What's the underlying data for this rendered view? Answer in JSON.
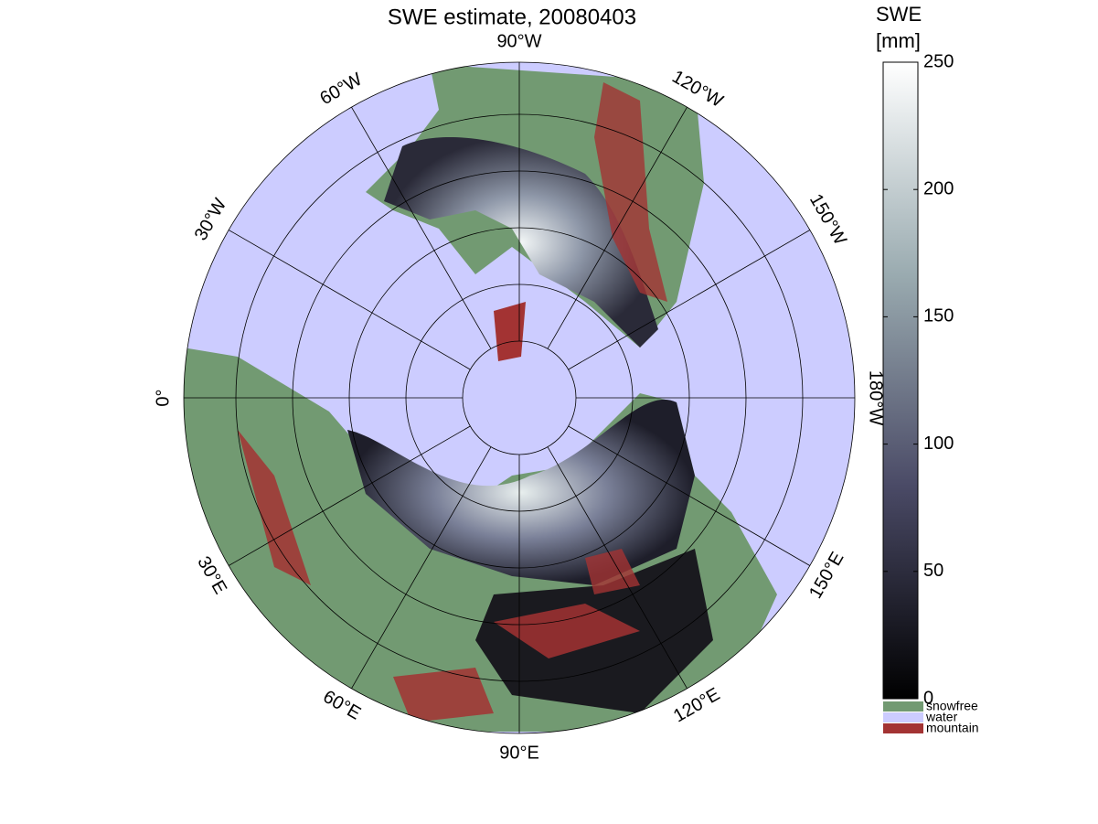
{
  "chart_data": {
    "type": "polar-map",
    "title": "SWE estimate, 20080403",
    "lon_ticks": [
      {
        "value": -90,
        "label": "90°W"
      },
      {
        "value": -60,
        "label": "60°W"
      },
      {
        "value": -30,
        "label": "30°W"
      },
      {
        "value": 0,
        "label": "0°"
      },
      {
        "value": 30,
        "label": "30°E"
      },
      {
        "value": 60,
        "label": "60°E"
      },
      {
        "value": 90,
        "label": "90°E"
      },
      {
        "value": 120,
        "label": "120°E"
      },
      {
        "value": 150,
        "label": "150°E"
      },
      {
        "value": 180,
        "label": "180°W"
      },
      {
        "value": -150,
        "label": "150°W"
      },
      {
        "value": -120,
        "label": "120°W"
      }
    ],
    "colorbar": {
      "label": [
        "SWE",
        "[mm]"
      ],
      "clim": [
        0,
        250
      ],
      "ticks": [
        0,
        50,
        100,
        150,
        200,
        250
      ],
      "colors": [
        "#000000",
        "#4a4a66",
        "#9aabb0",
        "#ffffff"
      ]
    },
    "legend": [
      {
        "name": "snowfree",
        "color": "#729a72"
      },
      {
        "name": "water",
        "color": "#ccccff"
      },
      {
        "name": "mountain",
        "color": "#a33333"
      }
    ]
  }
}
